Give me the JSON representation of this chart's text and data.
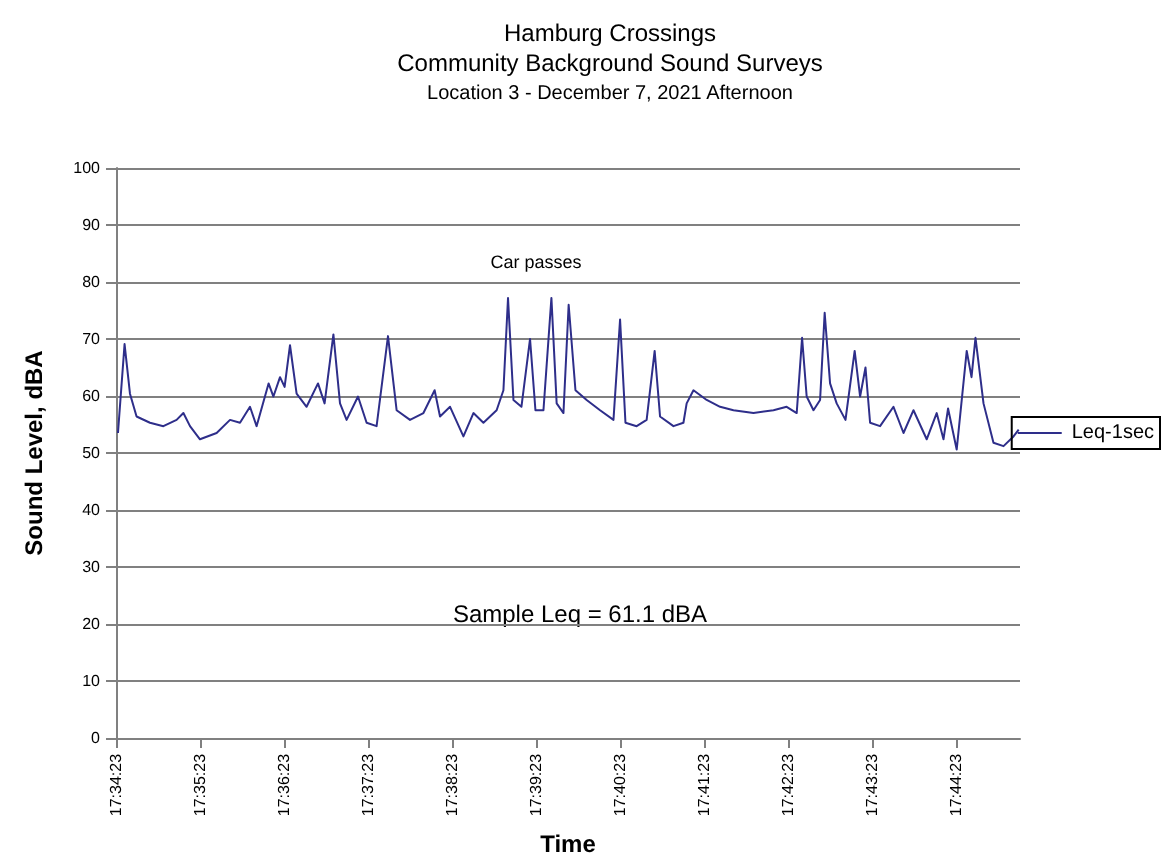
{
  "chart_data": {
    "type": "line",
    "title": "Hamburg Crossings\nCommunity Background Sound Surveys",
    "subtitle": "Location 3 - December 7, 2021 Afternoon",
    "xlabel": "Time",
    "ylabel": "Sound Level, dBA",
    "annotations": [
      "Car passes",
      "Sample Leq = 61.1 dBA"
    ],
    "series": [
      {
        "name": "Leq-1sec",
        "color": "#2e2e8a",
        "x": [
          17.57345,
          17.57476,
          17.57583,
          17.57714,
          17.5798,
          17.58246,
          17.58508,
          17.58643,
          17.58774,
          17.58972,
          17.59302,
          17.59568,
          17.59766,
          17.59964,
          17.60095,
          17.60333,
          17.60429,
          17.6056,
          17.60651,
          17.60758,
          17.60889,
          17.61087,
          17.61313,
          17.61444,
          17.61619,
          17.6175,
          17.61881,
          17.62107,
          17.62278,
          17.62476,
          17.62702,
          17.62873,
          17.63139,
          17.63405,
          17.63627,
          17.63734,
          17.63933,
          17.64198,
          17.64397,
          17.64595,
          17.64857,
          17.64992,
          17.65083,
          17.65191,
          17.65349,
          17.6552,
          17.65627,
          17.65786,
          17.65944,
          17.66048,
          17.66183,
          17.66286,
          17.66421,
          17.66643,
          17.66909,
          17.67175,
          17.67306,
          17.67413,
          17.67635,
          17.67833,
          17.67992,
          17.68099,
          17.68365,
          17.68563,
          17.68627,
          17.68762,
          17.69024,
          17.6929,
          17.69556,
          17.69952,
          17.70349,
          17.70611,
          17.7081,
          17.70917,
          17.71008,
          17.71143,
          17.71274,
          17.71365,
          17.71472,
          17.71603,
          17.71778,
          17.7196,
          17.72068,
          17.72175,
          17.72266,
          17.72464,
          17.7273,
          17.72929,
          17.73127,
          17.73389,
          17.73587,
          17.73722,
          17.73813,
          17.73984,
          17.74183,
          17.74278,
          17.74357,
          17.74516,
          17.74714,
          17.74913,
          17.75111,
          17.75214
        ],
        "values": [
          53.5,
          69.1,
          60.4,
          56.4,
          55.3,
          54.7,
          55.8,
          57,
          54.7,
          52.4,
          53.5,
          55.8,
          55.3,
          58.1,
          54.7,
          62.2,
          59.9,
          63.3,
          61.6,
          68.9,
          60.4,
          58.1,
          62.2,
          58.7,
          70.8,
          58.7,
          55.8,
          59.9,
          55.3,
          54.7,
          70.5,
          57.5,
          55.8,
          57,
          61,
          56.4,
          58.1,
          52.9,
          57,
          55.3,
          57.5,
          61,
          77.2,
          59.3,
          58.1,
          70,
          57.5,
          57.5,
          77.2,
          58.7,
          57,
          76,
          61,
          59.3,
          57.5,
          55.8,
          73.4,
          55.3,
          54.7,
          55.8,
          67.9,
          56.4,
          54.7,
          55.3,
          58.7,
          61,
          59.3,
          58.1,
          57.5,
          57,
          57.5,
          58.1,
          57,
          70.2,
          59.9,
          57.5,
          59.3,
          74.6,
          62.2,
          58.7,
          55.8,
          67.9,
          59.9,
          65,
          55.3,
          54.7,
          58.1,
          53.5,
          57.5,
          52.4,
          57,
          52.4,
          57.8,
          50.6,
          67.9,
          63.3,
          70.2,
          58.7,
          51.8,
          51.2,
          52.9,
          54.1
        ]
      }
    ],
    "xlim": [
      17.57306,
      17.7524
    ],
    "xticks": [
      {
        "value": 17.57306,
        "label": "17:34:23"
      },
      {
        "value": 17.58972,
        "label": "17:35:23"
      },
      {
        "value": 17.60639,
        "label": "17:36:23"
      },
      {
        "value": 17.62306,
        "label": "17:37:23"
      },
      {
        "value": 17.63972,
        "label": "17:38:23"
      },
      {
        "value": 17.65639,
        "label": "17:39:23"
      },
      {
        "value": 17.67306,
        "label": "17:40:23"
      },
      {
        "value": 17.68972,
        "label": "17:41:23"
      },
      {
        "value": 17.70639,
        "label": "17:42:23"
      },
      {
        "value": 17.72306,
        "label": "17:43:23"
      },
      {
        "value": 17.73972,
        "label": "17:44:23"
      }
    ],
    "ylim": [
      0,
      100
    ],
    "yticks": [
      0,
      10,
      20,
      30,
      40,
      50,
      60,
      70,
      80,
      90,
      100
    ],
    "grid": "y",
    "legend": "right",
    "marker": "none",
    "line_style": "solid"
  }
}
